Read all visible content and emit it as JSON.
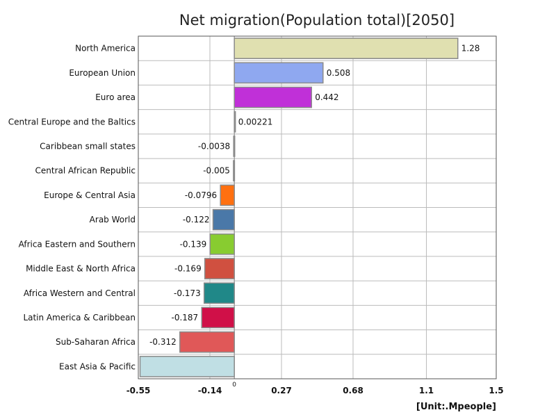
{
  "chart_data": {
    "type": "bar",
    "orientation": "horizontal",
    "title": "Net migration(Population total)[2050]",
    "unit_label": "[Unit:.Mpeople]",
    "categories": [
      "North America",
      "European Union",
      "Euro area",
      "Central Europe and the Baltics",
      "Caribbean small states",
      "Central African Republic",
      "Europe & Central Asia",
      "Arab World",
      "Africa Eastern and Southern",
      "Middle East & North Africa",
      "Africa Western and Central",
      "Latin America & Caribbean",
      "Sub-Saharan Africa",
      "East Asia & Pacific"
    ],
    "values": [
      1.28,
      0.508,
      0.442,
      0.00221,
      -0.0038,
      -0.005,
      -0.0796,
      -0.122,
      -0.139,
      -0.169,
      -0.173,
      -0.187,
      -0.312,
      -0.54
    ],
    "value_labels": [
      "1.28",
      "0.508",
      "0.442",
      "0.00221",
      "-0.0038",
      "-0.005",
      "-0.0796",
      "-0.122",
      "-0.139",
      "-0.169",
      "-0.173",
      "-0.187",
      "-0.312",
      ""
    ],
    "colors": [
      "#e0e0b0",
      "#8fa8f0",
      "#c030d8",
      "#cccccc",
      "#cccccc",
      "#cccccc",
      "#ff7010",
      "#4a78a8",
      "#88cc30",
      "#d05040",
      "#208888",
      "#d01048",
      "#e05858",
      "#c0dfe4"
    ],
    "xlim": [
      -0.55,
      1.5
    ],
    "xticks": [
      -0.55,
      -0.14,
      0,
      0.27,
      0.68,
      1.1,
      1.5
    ],
    "xtick_labels": [
      "-0.55",
      "-0.14",
      "0",
      "0.27",
      "0.68",
      "1.1",
      "1.5"
    ],
    "grid": true
  }
}
